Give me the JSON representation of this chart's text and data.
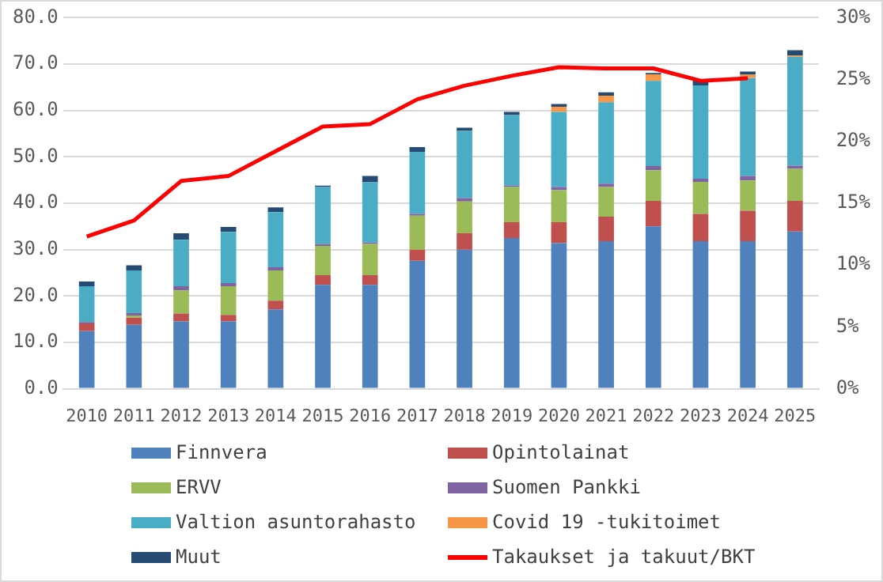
{
  "chart_data": {
    "type": "bar",
    "stacked": true,
    "categories": [
      "2010",
      "2011",
      "2012",
      "2013",
      "2014",
      "2015",
      "2016",
      "2017",
      "2018",
      "2019",
      "2020",
      "2021",
      "2022",
      "2023",
      "2024",
      "2025"
    ],
    "series": [
      {
        "name": "Finnvera",
        "color": "#4f81bd",
        "values": [
          12.4,
          13.8,
          14.5,
          14.5,
          17.1,
          22.4,
          22.4,
          27.6,
          30.0,
          32.5,
          31.4,
          31.8,
          35.0,
          31.8,
          31.8,
          33.9
        ]
      },
      {
        "name": "Opintolainat",
        "color": "#c0504d",
        "values": [
          1.7,
          1.5,
          1.7,
          1.4,
          1.9,
          2.1,
          2.1,
          2.4,
          3.5,
          3.4,
          4.5,
          5.3,
          5.5,
          5.9,
          6.6,
          6.6
        ]
      },
      {
        "name": "ERVV",
        "color": "#9bbb59",
        "values": [
          0,
          0.5,
          5.0,
          6.2,
          6.5,
          6.3,
          6.7,
          7.3,
          6.9,
          7.6,
          6.9,
          6.4,
          6.6,
          6.9,
          6.5,
          6.9
        ]
      },
      {
        "name": "Suomen Pankki",
        "color": "#8064a2",
        "values": [
          0.3,
          0.5,
          0.9,
          0.7,
          0.7,
          0.4,
          0.3,
          0.4,
          0.7,
          0.3,
          0.7,
          0.7,
          0.9,
          0.7,
          1.0,
          0.7
        ]
      },
      {
        "name": "Valtion asuntorahasto",
        "color": "#4bacc6",
        "values": [
          7.7,
          9.2,
          10.0,
          11.0,
          11.9,
          12.3,
          13.0,
          13.4,
          14.5,
          15.2,
          16.2,
          17.6,
          18.4,
          20.1,
          21.1,
          23.5
        ]
      },
      {
        "name": "Covid 19 -tukitoimet",
        "color": "#f79646",
        "values": [
          0,
          0,
          0,
          0,
          0,
          0,
          0,
          0,
          0,
          0,
          1.1,
          1.4,
          1.4,
          0,
          0.7,
          0.3
        ]
      },
      {
        "name": "Muut",
        "color": "#264b73",
        "values": [
          1.0,
          1.1,
          1.4,
          1.1,
          1.0,
          0.3,
          1.4,
          1.0,
          0.7,
          0.7,
          0.6,
          0.7,
          0.3,
          1.1,
          0.7,
          1.1
        ]
      },
      {
        "name": "Takaukset ja takuut/BKT",
        "type": "line",
        "axis": "y2",
        "color": "#ff0000",
        "values": [
          12.3,
          13.6,
          16.8,
          17.2,
          19.2,
          21.2,
          21.4,
          23.4,
          24.5,
          25.3,
          26.0,
          25.9,
          25.9,
          24.9,
          25.1,
          null
        ]
      }
    ],
    "ylim": [
      0,
      80
    ],
    "yticks": [
      {
        "value": 0,
        "label": "0.0"
      },
      {
        "value": 10,
        "label": "10.0"
      },
      {
        "value": 20,
        "label": "20.0"
      },
      {
        "value": 30,
        "label": "30.0"
      },
      {
        "value": 40,
        "label": "40.0"
      },
      {
        "value": 50,
        "label": "50.0"
      },
      {
        "value": 60,
        "label": "60.0"
      },
      {
        "value": 70,
        "label": "70.0"
      },
      {
        "value": 80,
        "label": "80.0"
      }
    ],
    "y2lim": [
      0,
      30
    ],
    "y2ticks": [
      {
        "value": 0,
        "label": "0%"
      },
      {
        "value": 5,
        "label": "5%"
      },
      {
        "value": 10,
        "label": "10%"
      },
      {
        "value": 15,
        "label": "15%"
      },
      {
        "value": 20,
        "label": "20%"
      },
      {
        "value": 25,
        "label": "25%"
      },
      {
        "value": 30,
        "label": "30%"
      }
    ],
    "grid": "y",
    "legend": "bottom",
    "marker": "none"
  }
}
